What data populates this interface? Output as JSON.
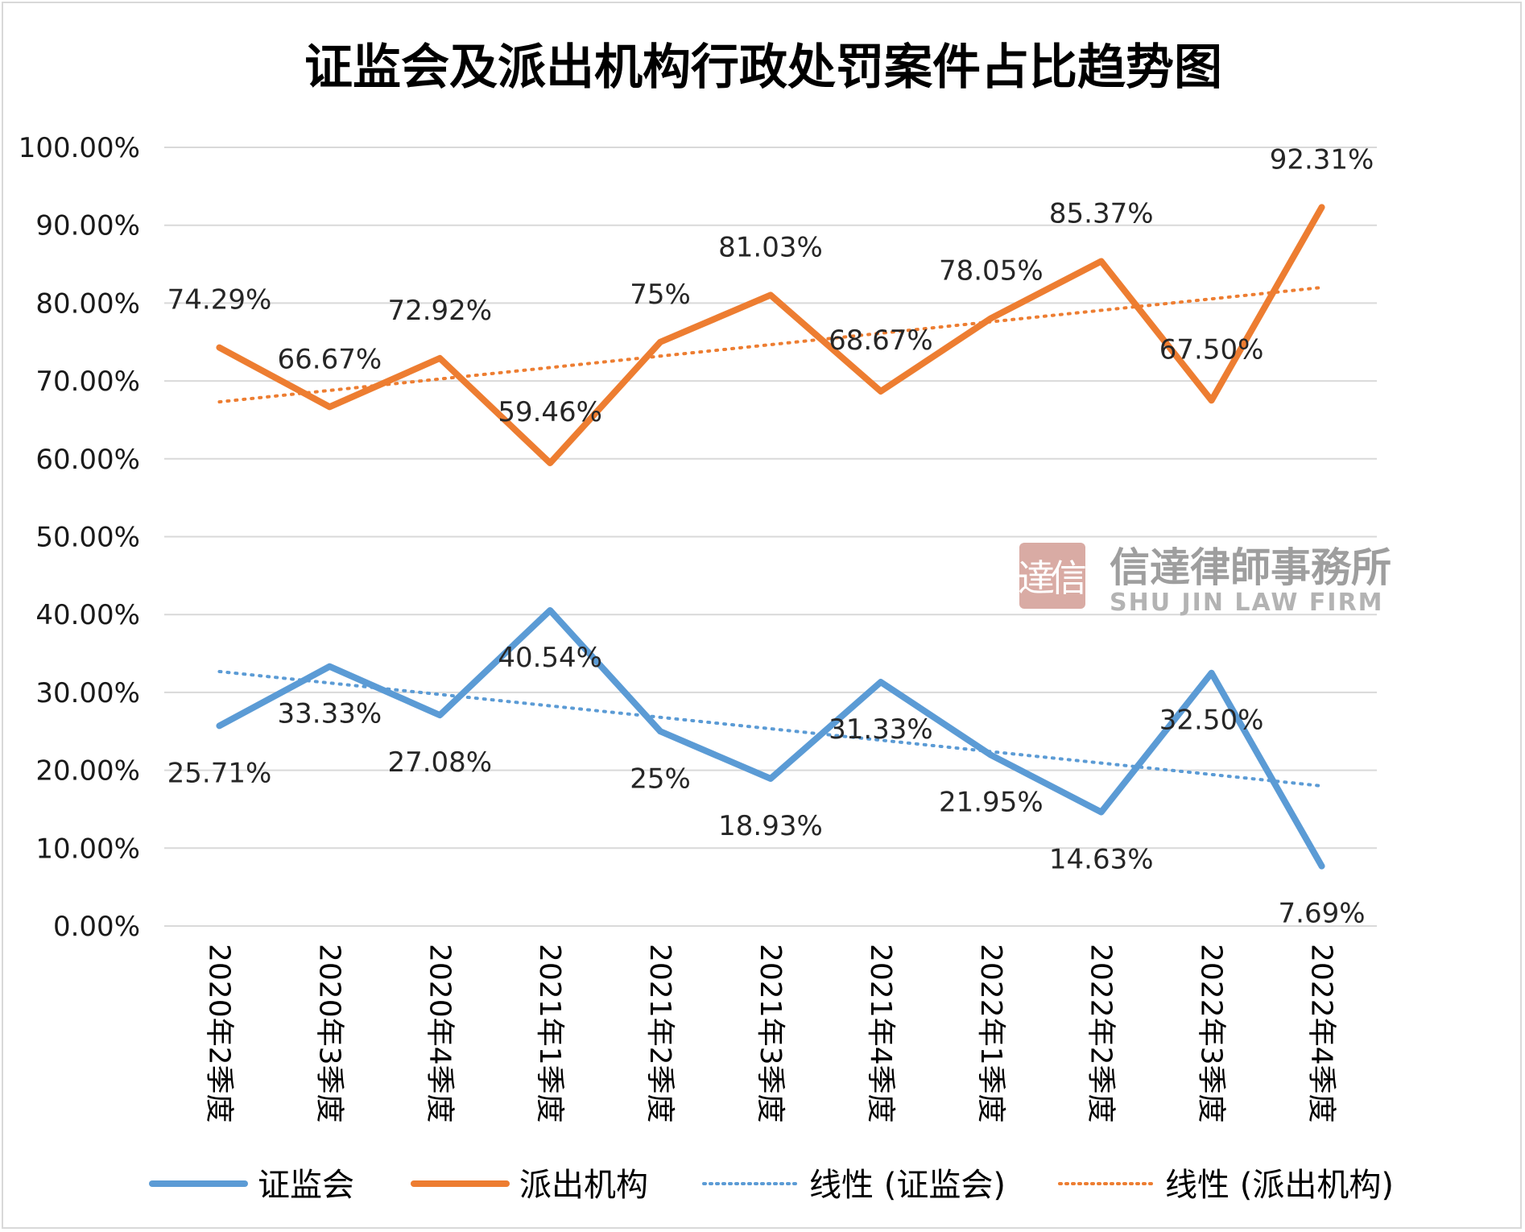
{
  "chart_data": {
    "type": "line",
    "title": "证监会及派出机构行政处罚案件占比趋势图",
    "categories": [
      "2020年2季度",
      "2020年3季度",
      "2020年4季度",
      "2021年1季度",
      "2021年2季度",
      "2021年3季度",
      "2021年4季度",
      "2022年1季度",
      "2022年2季度",
      "2022年3季度",
      "2022年4季度"
    ],
    "y_ticks": [
      "0.00%",
      "10.00%",
      "20.00%",
      "30.00%",
      "40.00%",
      "50.00%",
      "60.00%",
      "70.00%",
      "80.00%",
      "90.00%",
      "100.00%"
    ],
    "ylim": [
      0,
      100
    ],
    "grid": true,
    "legend_position": "bottom",
    "series": [
      {
        "name": "证监会",
        "color": "#5b9bd5",
        "values": [
          25.71,
          33.33,
          27.08,
          40.54,
          25,
          18.93,
          31.33,
          21.95,
          14.63,
          32.5,
          7.69
        ],
        "labels": [
          "25.71%",
          "33.33%",
          "27.08%",
          "40.54%",
          "25%",
          "18.93%",
          "31.33%",
          "21.95%",
          "14.63%",
          "32.50%",
          "7.69%"
        ]
      },
      {
        "name": "派出机构",
        "color": "#ed7d31",
        "values": [
          74.29,
          66.67,
          72.92,
          59.46,
          75,
          81.03,
          68.67,
          78.05,
          85.37,
          67.5,
          92.31
        ],
        "labels": [
          "74.29%",
          "66.67%",
          "72.92%",
          "59.46%",
          "75%",
          "81.03%",
          "68.67%",
          "78.05%",
          "85.37%",
          "67.50%",
          "92.31%"
        ]
      }
    ],
    "trendlines": [
      {
        "name": "线性 (证监会)",
        "of_series": 0,
        "type": "linear",
        "style": "dotted",
        "color": "#5b9bd5"
      },
      {
        "name": "线性 (派出机构)",
        "of_series": 1,
        "type": "linear",
        "style": "dotted",
        "color": "#ed7d31"
      }
    ]
  },
  "watermark": {
    "seal_chars": [
      "達",
      "信"
    ],
    "seal_color": "#d9aba4",
    "name_cn": "信達律師事務所",
    "name_en": "SHU JIN LAW FIRM"
  }
}
